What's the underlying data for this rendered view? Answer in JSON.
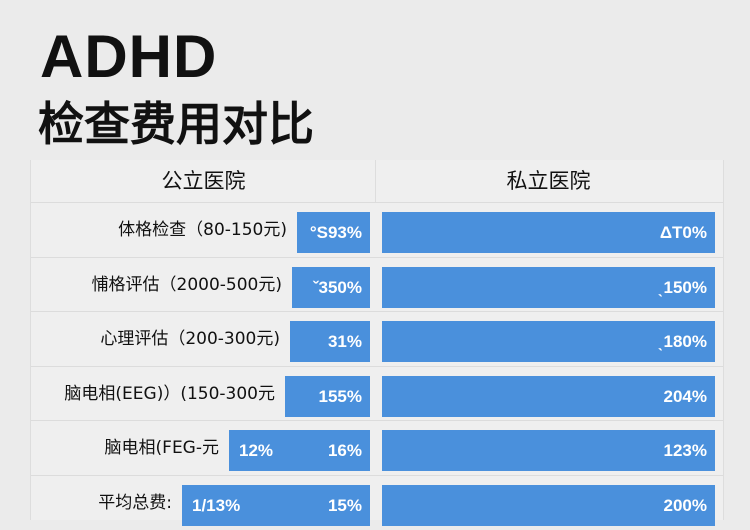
{
  "title_line1": "ADHD",
  "title_line2": "检查费用对比",
  "chart_data": {
    "type": "bar",
    "columns": [
      "公立医院",
      "私立医院"
    ],
    "bar_color": "#4a90dc",
    "rows": [
      {
        "label": "体格检查（80-150元)",
        "public_labels": [
          "°S93%"
        ],
        "private_label": "ΔT0%",
        "public_fraction": 0.31
      },
      {
        "label": "悑格评估（2000-500元)",
        "public_labels": [
          "ˇ350%"
        ],
        "private_label": "ˎ150%",
        "public_fraction": 0.33
      },
      {
        "label": "心理评估（200-300元)",
        "public_labels": [
          "31%"
        ],
        "private_label": "ˎ180%",
        "public_fraction": 0.34
      },
      {
        "label": "脑电相(EEG)）(150-300元",
        "public_labels": [
          "155%"
        ],
        "private_label": "204%",
        "public_fraction": 0.36
      },
      {
        "label": "脑电相(FEG-元",
        "public_labels": [
          "12%",
          "16%"
        ],
        "private_label": "123%",
        "public_fraction": 0.6
      },
      {
        "label": "平均总费:",
        "public_labels": [
          "1/13%",
          "15%"
        ],
        "private_label": "200%",
        "public_fraction": 0.8
      }
    ]
  }
}
